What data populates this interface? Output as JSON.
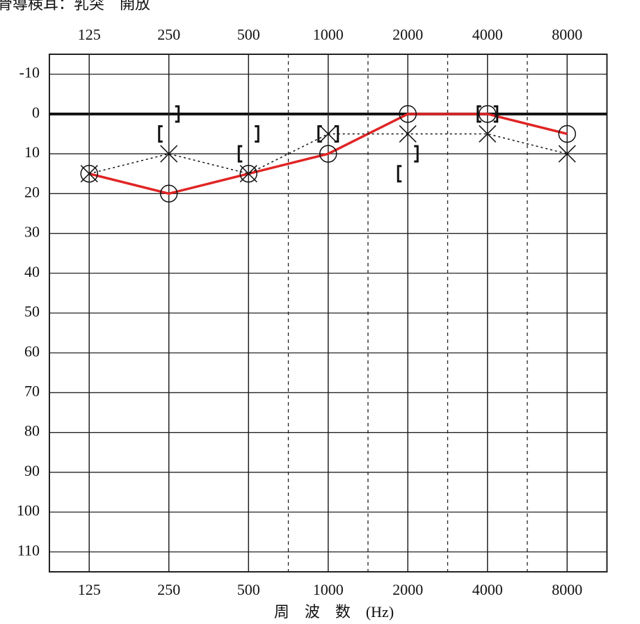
{
  "chart_data": {
    "type": "line",
    "title": "骨導検耳：乳突　開放",
    "x_label": "周　波　数　(Hz)",
    "categories": [
      "125",
      "250",
      "500",
      "1000",
      "2000",
      "4000",
      "8000"
    ],
    "ylim": [
      -15,
      115
    ],
    "y_inverted": true,
    "yticks": [
      -10,
      0,
      10,
      20,
      30,
      40,
      50,
      60,
      70,
      80,
      90,
      100,
      110
    ],
    "grid": true,
    "zero_line": true,
    "half_octave_lines": true,
    "series": [
      {
        "color": "#e02424",
        "marker": "circle",
        "line": "solid",
        "values": [
          15,
          20,
          15,
          10,
          0,
          0,
          5
        ]
      },
      {
        "color": "#111111",
        "marker": "x",
        "line": "dotted",
        "values": [
          15,
          10,
          15,
          5,
          5,
          5,
          10
        ]
      },
      {
        "color": "#111111",
        "marker": "bracket-left",
        "line": "none",
        "values": [
          null,
          5,
          10,
          5,
          15,
          0,
          null
        ]
      },
      {
        "color": "#111111",
        "marker": "bracket-right",
        "line": "none",
        "values": [
          null,
          0,
          5,
          5,
          10,
          0,
          null
        ]
      }
    ]
  }
}
